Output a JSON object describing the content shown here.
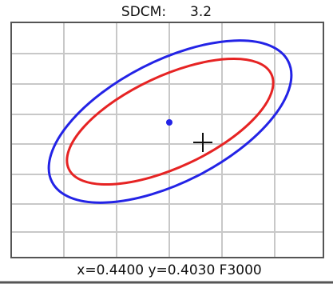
{
  "header": {
    "label": "SDCM:",
    "value": "3.2"
  },
  "footer": {
    "status": "x=0.4400 y=0.4030 F3000"
  }
}
